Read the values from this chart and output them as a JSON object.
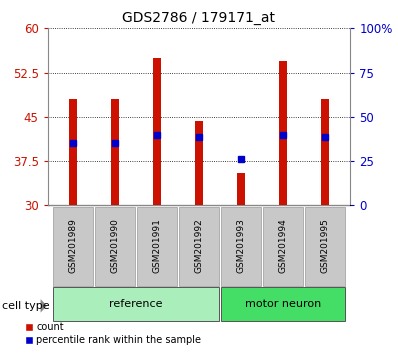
{
  "title": "GDS2786 / 179171_at",
  "samples": [
    "GSM201989",
    "GSM201990",
    "GSM201991",
    "GSM201992",
    "GSM201993",
    "GSM201994",
    "GSM201995"
  ],
  "bar_bottoms": [
    30,
    30,
    30,
    30,
    30,
    30,
    30
  ],
  "bar_tops": [
    48.0,
    48.0,
    55.0,
    44.3,
    35.5,
    54.5,
    48.0
  ],
  "percentile_values": [
    40.5,
    40.5,
    42.0,
    41.5,
    37.8,
    42.0,
    41.5
  ],
  "groups": [
    {
      "label": "reference",
      "indices": [
        0,
        1,
        2,
        3
      ],
      "color": "#aaeebb"
    },
    {
      "label": "motor neuron",
      "indices": [
        4,
        5,
        6
      ],
      "color": "#44dd66"
    }
  ],
  "ylim_left": [
    30,
    60
  ],
  "yticks_left": [
    30,
    37.5,
    45,
    52.5,
    60
  ],
  "yticks_left_labels": [
    "30",
    "37.5",
    "45",
    "52.5",
    "60"
  ],
  "yticks_right_vals": [
    0,
    25,
    50,
    75,
    100
  ],
  "yticks_right_labels": [
    "0",
    "25",
    "50",
    "75",
    "100%"
  ],
  "bar_color": "#cc1100",
  "percentile_color": "#0000cc",
  "label_bg_color": "#c8c8c8",
  "label_bg_edge_color": "#999999",
  "group_label_fontsize": 8,
  "axis_label_color_left": "#cc1100",
  "axis_label_color_right": "#0000cc",
  "legend_count_label": "count",
  "legend_pct_label": "percentile rank within the sample",
  "cell_type_label": "cell type",
  "bar_width": 0.55,
  "title_fontsize": 10
}
